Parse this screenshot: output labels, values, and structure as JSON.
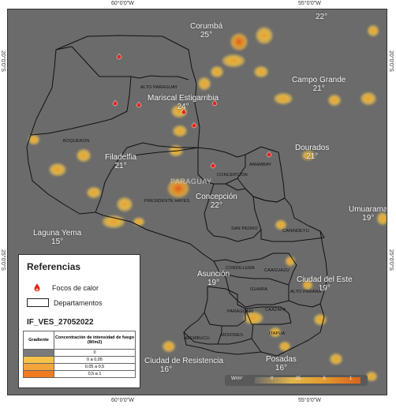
{
  "coords": {
    "top": [
      "60°0'0\"W",
      "55°0'0\"W"
    ],
    "bottom": [
      "60°0'0\"W",
      "55°0'0\"W"
    ],
    "left": [
      "20°0'0\"S",
      "25°0'0\"S"
    ],
    "right": [
      "20°0'0\"S",
      "25°0'0\"S"
    ]
  },
  "cities": [
    {
      "name": "Corumbá",
      "temp": "25°"
    },
    {
      "name": "Campo Grande",
      "temp": "21°"
    },
    {
      "name": "Dourados",
      "temp": "21°"
    },
    {
      "name": "Filadelfia",
      "temp": "21°"
    },
    {
      "name": "Mariscal Estigarribia",
      "temp": "24°"
    },
    {
      "name": "Concepción",
      "temp": "22°"
    },
    {
      "name": "Laguna Yema",
      "temp": "15°"
    },
    {
      "name": "Umuarama",
      "temp": "19°"
    },
    {
      "name": "Asunción",
      "temp": "19°"
    },
    {
      "name": "Ciudad del Este",
      "temp": "19°"
    },
    {
      "name": "Ciudad de Resistencia",
      "temp": "16°"
    },
    {
      "name": "Posadas",
      "temp": "16°"
    },
    {
      "name": "",
      "temp": "22°"
    }
  ],
  "country_label": "PARAGUAY",
  "departments": [
    "ALTO PARAGUAY",
    "BOQUERON",
    "PRESIDENTE HAYES",
    "CONCEPCION",
    "AMAMBAY",
    "SAN PEDRO",
    "CANINDEYU",
    "CORDILLERA",
    "CAAGUAZU",
    "GUAIRA",
    "ALTO PARANA",
    "PARAGUARI",
    "CAAZAPA",
    "NEEMBUCU",
    "MISIONES",
    "ITAPUA"
  ],
  "legend": {
    "title": "Referencias",
    "fire_label": "Focos de calor",
    "dept_label": "Departamentos",
    "product_id": "IF_VES_27052022",
    "table_header_left": "Gradiente",
    "table_header_right": "Concentración de intensidad de fuego (W/m2)",
    "rows": [
      {
        "color": "#7a7a7a",
        "label": "0"
      },
      {
        "color": "#f5c24a",
        "label": "0 a 0,05"
      },
      {
        "color": "#f3a53a",
        "label": "0,05 a 0,5"
      },
      {
        "color": "#f27a1f",
        "label": "0,5 a 1"
      }
    ]
  },
  "scale": {
    "unit": "W/m²",
    "ticks": [
      "0",
      ".25",
      ".5",
      "1"
    ]
  },
  "colors": {
    "background": "#6b6b6b",
    "fire_marker": "#e0261a"
  }
}
